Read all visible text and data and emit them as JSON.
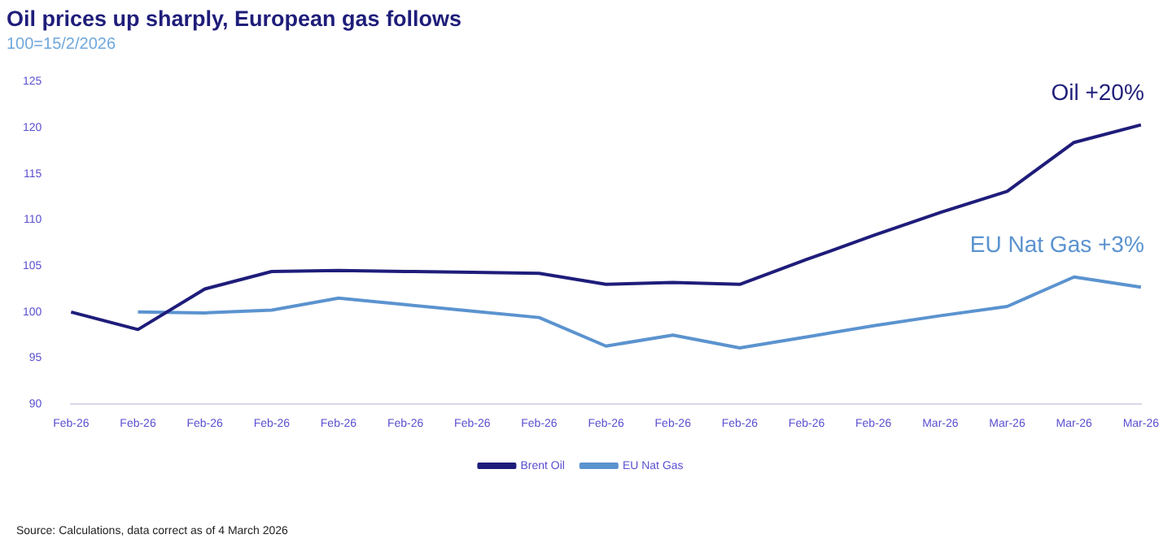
{
  "chart_data": {
    "type": "line",
    "title": "Oil prices up sharply, European gas follows",
    "subtitle": "100=15/2/2026",
    "categories": [
      "Feb-26",
      "Feb-26",
      "Feb-26",
      "Feb-26",
      "Feb-26",
      "Feb-26",
      "Feb-26",
      "Feb-26",
      "Feb-26",
      "Feb-26",
      "Feb-26",
      "Feb-26",
      "Feb-26",
      "Mar-26",
      "Mar-26",
      "Mar-26",
      "Mar-26"
    ],
    "series": [
      {
        "name": "Brent Oil",
        "color": "#1f1d7a",
        "values": [
          100,
          98.1,
          102.5,
          104.4,
          104.5,
          104.4,
          104.3,
          104.2,
          103,
          103.2,
          103,
          105.7,
          108.3,
          110.8,
          113.1,
          118.4,
          120.3
        ]
      },
      {
        "name": "EU Nat Gas",
        "color": "#5b93cf",
        "values": [
          null,
          100,
          99.9,
          100.2,
          101.5,
          100.8,
          100.1,
          99.4,
          96.3,
          97.5,
          96.1,
          97.3,
          98.5,
          99.6,
          100.6,
          103.8,
          102.7
        ]
      }
    ],
    "ylim": [
      90,
      125
    ],
    "yticks": [
      90,
      95,
      100,
      105,
      110,
      115,
      120,
      125
    ],
    "grid": false,
    "legend": "bottom",
    "marker": "none",
    "line_style": "solid",
    "annotations": [
      "Oil +20%",
      "EU Nat Gas +3%",
      "Source: Calculations, data correct as of 4 March 2026"
    ]
  }
}
